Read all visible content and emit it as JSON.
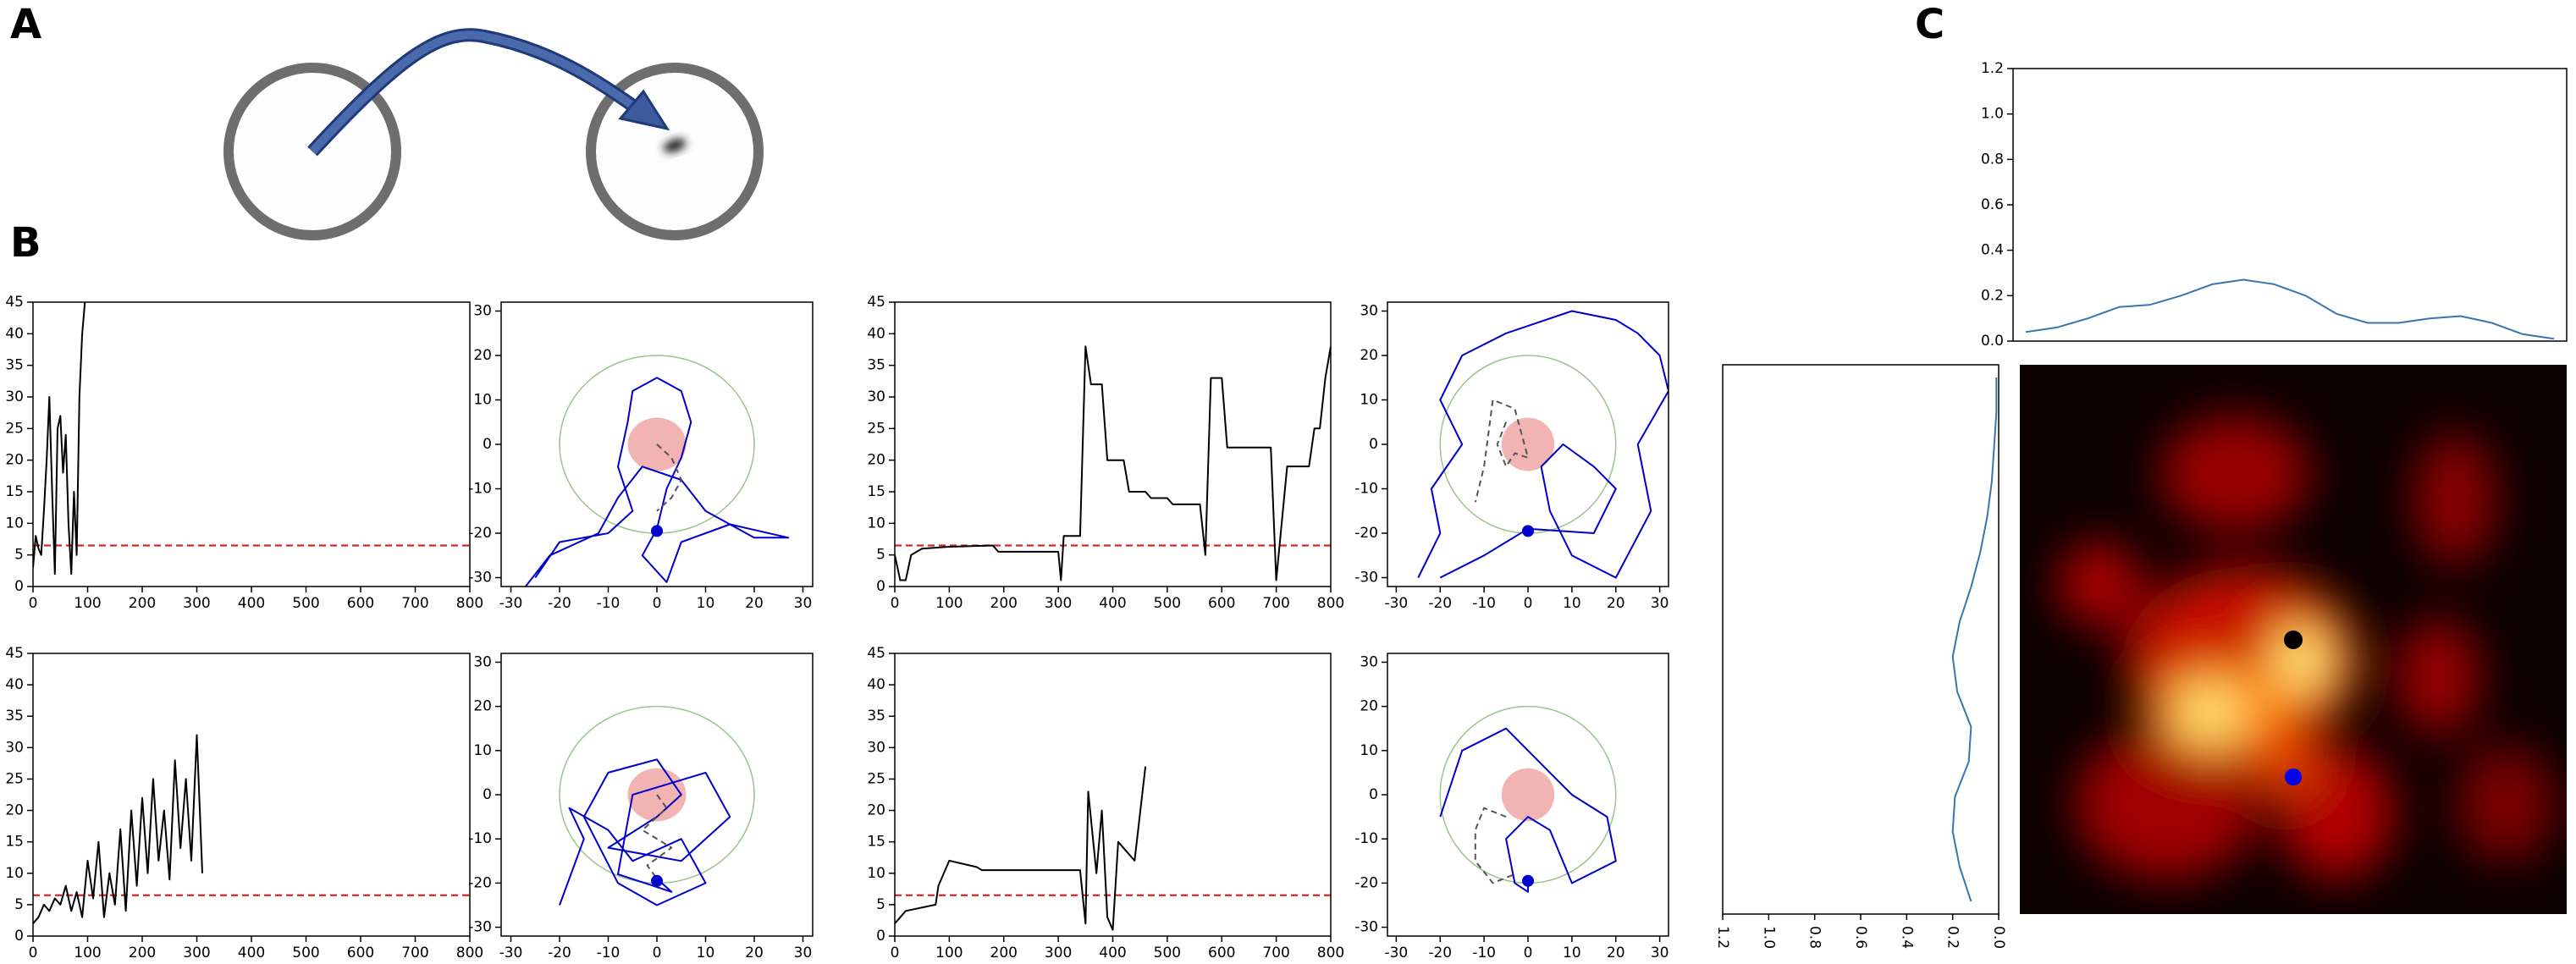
{
  "panel_labels": [
    "A",
    "B",
    "C"
  ],
  "chart_data": [
    {
      "type": "line",
      "xlim": [
        0,
        800
      ],
      "ylim": [
        0,
        45
      ],
      "xticks": [
        0,
        100,
        200,
        300,
        400,
        500,
        600,
        700,
        800
      ],
      "yticks": [
        0,
        5,
        10,
        15,
        20,
        25,
        30,
        35,
        40,
        45
      ],
      "threshold": 6.5,
      "threshold_color": "#d62728",
      "series": [
        {
          "color": "#000000",
          "x": [
            0,
            5,
            10,
            15,
            20,
            25,
            30,
            35,
            40,
            45,
            50,
            55,
            60,
            65,
            70,
            75,
            80,
            85,
            90,
            95
          ],
          "values": [
            3,
            8,
            6,
            5,
            12,
            20,
            30,
            15,
            2,
            25,
            27,
            18,
            24,
            10,
            2,
            15,
            5,
            30,
            40,
            45
          ]
        }
      ]
    },
    {
      "type": "line",
      "xlim": [
        -32,
        32
      ],
      "ylim": [
        -32,
        32
      ],
      "xticks": [
        -30,
        -20,
        -10,
        0,
        10,
        20,
        30
      ],
      "yticks": [
        -30,
        -20,
        -10,
        0,
        10,
        20,
        30
      ],
      "circles": [
        {
          "x": 0,
          "y": 0,
          "r": 20,
          "color": "#9bc48f",
          "filled": false
        },
        {
          "x": 0,
          "y": 0,
          "r": 6,
          "color": "#ee9a9a",
          "filled": true
        }
      ],
      "start": {
        "x": 0,
        "y": -19.5,
        "color": "#0000cc"
      },
      "series": [
        {
          "color": "#0000cc",
          "x": [
            -25,
            -20,
            -10,
            -5,
            -8,
            -6,
            -5,
            0,
            5,
            7,
            5,
            2,
            0,
            -3,
            2,
            5,
            10,
            15,
            27,
            20,
            10,
            5,
            -3,
            -8,
            -12,
            -22,
            -27
          ],
          "values": [
            -30,
            -22,
            -20,
            -15,
            -5,
            5,
            12,
            15,
            12,
            5,
            -3,
            -10,
            -19,
            -25,
            -31,
            -22,
            -20,
            -18,
            -21,
            -21,
            -15,
            -8,
            -5,
            -12,
            -20,
            -25,
            -32
          ]
        },
        {
          "color": "#555555",
          "dashed": true,
          "x": [
            0,
            3,
            5,
            3,
            0
          ],
          "values": [
            0,
            -3,
            -8,
            -12,
            -15
          ]
        }
      ]
    },
    {
      "type": "line",
      "xlim": [
        0,
        800
      ],
      "ylim": [
        0,
        45
      ],
      "xticks": [
        0,
        100,
        200,
        300,
        400,
        500,
        600,
        700,
        800
      ],
      "yticks": [
        0,
        5,
        10,
        15,
        20,
        25,
        30,
        35,
        40,
        45
      ],
      "threshold": 6.5,
      "threshold_color": "#d62728",
      "series": [
        {
          "color": "#000000",
          "x": [
            0,
            10,
            20,
            30,
            50,
            100,
            180,
            190,
            300,
            305,
            310,
            340,
            350,
            360,
            380,
            390,
            420,
            430,
            460,
            470,
            500,
            510,
            560,
            570,
            580,
            600,
            610,
            690,
            700,
            720,
            760,
            770,
            780,
            790,
            800
          ],
          "values": [
            5,
            1,
            1,
            5,
            6,
            6.3,
            6.5,
            5.5,
            5.5,
            1,
            8,
            8,
            38,
            32,
            32,
            20,
            20,
            15,
            15,
            14,
            14,
            13,
            13,
            5,
            33,
            33,
            22,
            22,
            1,
            19,
            19,
            25,
            25,
            33,
            38
          ]
        }
      ]
    },
    {
      "type": "line",
      "xlim": [
        -32,
        32
      ],
      "ylim": [
        -32,
        32
      ],
      "xticks": [
        -30,
        -20,
        -10,
        0,
        10,
        20,
        30
      ],
      "yticks": [
        -30,
        -20,
        -10,
        0,
        10,
        20,
        30
      ],
      "circles": [
        {
          "x": 0,
          "y": 0,
          "r": 20,
          "color": "#9bc48f",
          "filled": false
        },
        {
          "x": 0,
          "y": 0,
          "r": 6,
          "color": "#ee9a9a",
          "filled": true
        }
      ],
      "start": {
        "x": 0,
        "y": -19.5,
        "color": "#0000cc"
      },
      "series": [
        {
          "color": "#0000cc",
          "x": [
            -25,
            -20,
            -22,
            -15,
            -20,
            -15,
            -5,
            10,
            20,
            25,
            30,
            32,
            25,
            28,
            20,
            10,
            5,
            3,
            8,
            15,
            20,
            15,
            0,
            -10,
            -20
          ],
          "values": [
            -30,
            -20,
            -10,
            0,
            10,
            20,
            25,
            30,
            28,
            25,
            20,
            12,
            0,
            -15,
            -30,
            -25,
            -15,
            -5,
            0,
            -5,
            -10,
            -20,
            -19,
            -25,
            -30
          ]
        },
        {
          "color": "#555555",
          "dashed": true,
          "x": [
            -5,
            -7,
            -5,
            -3,
            0,
            -3,
            -8,
            -10,
            -12
          ],
          "values": [
            5,
            0,
            -5,
            -2,
            -3,
            8,
            10,
            -5,
            -13
          ]
        }
      ]
    },
    {
      "type": "line",
      "xlim": [
        0,
        800
      ],
      "ylim": [
        0,
        45
      ],
      "xticks": [
        0,
        100,
        200,
        300,
        400,
        500,
        600,
        700,
        800
      ],
      "yticks": [
        0,
        5,
        10,
        15,
        20,
        25,
        30,
        35,
        40,
        45
      ],
      "threshold": 6.5,
      "threshold_color": "#d62728",
      "series": [
        {
          "color": "#000000",
          "x": [
            0,
            10,
            20,
            30,
            40,
            50,
            60,
            70,
            80,
            90,
            100,
            110,
            120,
            130,
            140,
            150,
            160,
            170,
            180,
            190,
            200,
            210,
            220,
            230,
            240,
            250,
            260,
            270,
            280,
            290,
            300,
            310
          ],
          "values": [
            2,
            3,
            5,
            4,
            6,
            5,
            8,
            4,
            7,
            3,
            12,
            6,
            15,
            3,
            10,
            5,
            17,
            4,
            20,
            8,
            22,
            10,
            25,
            12,
            20,
            9,
            28,
            14,
            25,
            12,
            32,
            10
          ]
        }
      ]
    },
    {
      "type": "line",
      "xlim": [
        -32,
        32
      ],
      "ylim": [
        -32,
        32
      ],
      "xticks": [
        -30,
        -20,
        -10,
        0,
        10,
        20,
        30
      ],
      "yticks": [
        -30,
        -20,
        -10,
        0,
        10,
        20,
        30
      ],
      "circles": [
        {
          "x": 0,
          "y": 0,
          "r": 20,
          "color": "#9bc48f",
          "filled": false
        },
        {
          "x": 0,
          "y": 0,
          "r": 6,
          "color": "#ee9a9a",
          "filled": true
        }
      ],
      "start": {
        "x": 0,
        "y": -19.5,
        "color": "#0000cc"
      },
      "series": [
        {
          "color": "#0000cc",
          "x": [
            -20,
            -15,
            -18,
            -10,
            -5,
            5,
            10,
            0,
            -8,
            -15,
            -10,
            0,
            5,
            0,
            -10,
            5,
            15,
            10,
            -5,
            -8,
            3,
            0
          ],
          "values": [
            -25,
            -10,
            -3,
            -8,
            -15,
            -10,
            -20,
            -25,
            -20,
            -5,
            5,
            8,
            0,
            -5,
            -12,
            -15,
            -5,
            5,
            0,
            -18,
            -22,
            -19
          ]
        },
        {
          "color": "#555555",
          "dashed": true,
          "x": [
            0,
            2,
            -3,
            3,
            -2,
            0
          ],
          "values": [
            0,
            -3,
            -8,
            -12,
            -16,
            -19
          ]
        }
      ]
    },
    {
      "type": "line",
      "xlim": [
        0,
        800
      ],
      "ylim": [
        0,
        45
      ],
      "xticks": [
        0,
        100,
        200,
        300,
        400,
        500,
        600,
        700,
        800
      ],
      "yticks": [
        0,
        5,
        10,
        15,
        20,
        25,
        30,
        35,
        40,
        45
      ],
      "threshold": 6.5,
      "threshold_color": "#d62728",
      "series": [
        {
          "color": "#000000",
          "x": [
            0,
            20,
            75,
            80,
            100,
            150,
            160,
            340,
            350,
            355,
            370,
            380,
            390,
            400,
            410,
            440,
            460
          ],
          "values": [
            2,
            4,
            5,
            8,
            12,
            11,
            10.5,
            10.5,
            2,
            23,
            10,
            20,
            3,
            1,
            15,
            12,
            27
          ]
        }
      ]
    },
    {
      "type": "line",
      "xlim": [
        -32,
        32
      ],
      "ylim": [
        -32,
        32
      ],
      "xticks": [
        -30,
        -20,
        -10,
        0,
        10,
        20,
        30
      ],
      "yticks": [
        -30,
        -20,
        -10,
        0,
        10,
        20,
        30
      ],
      "circles": [
        {
          "x": 0,
          "y": 0,
          "r": 20,
          "color": "#9bc48f",
          "filled": false
        },
        {
          "x": 0,
          "y": 0,
          "r": 6,
          "color": "#ee9a9a",
          "filled": true
        }
      ],
      "start": {
        "x": 0,
        "y": -19.5,
        "color": "#0000cc"
      },
      "series": [
        {
          "color": "#0000cc",
          "x": [
            -20,
            -15,
            -5,
            5,
            10,
            18,
            20,
            10,
            5,
            0,
            -5,
            -3,
            0,
            0
          ],
          "values": [
            -5,
            10,
            15,
            5,
            0,
            -5,
            -15,
            -20,
            -8,
            -5,
            -10,
            -20,
            -22,
            -19
          ]
        },
        {
          "color": "#555555",
          "dashed": true,
          "x": [
            -5,
            -10,
            -12,
            -12,
            -8,
            -3
          ],
          "values": [
            -5,
            -3,
            -8,
            -15,
            -20,
            -18
          ]
        }
      ]
    },
    {
      "type": "line",
      "ylim": [
        0,
        1.2
      ],
      "yticks": [
        {
          "value": 0,
          "label": "0.0"
        },
        {
          "value": 0.2,
          "label": "0.2"
        },
        {
          "value": 0.4,
          "label": "0.4"
        },
        {
          "value": 0.6,
          "label": "0.6"
        },
        {
          "value": 0.8,
          "label": "0.8"
        },
        {
          "value": 1.0,
          "label": "1.0"
        },
        {
          "value": 1.2,
          "label": "1.2"
        }
      ],
      "series": [
        {
          "color": "#3a75b0",
          "values": [
            0.04,
            0.06,
            0.1,
            0.15,
            0.16,
            0.2,
            0.25,
            0.27,
            0.25,
            0.2,
            0.12,
            0.08,
            0.08,
            0.1,
            0.11,
            0.08,
            0.03,
            0.01
          ]
        }
      ]
    },
    {
      "type": "line",
      "orientation": "vertical",
      "xlim": [
        1.2,
        0
      ],
      "xticks": [
        {
          "value": 1.2,
          "label": "1.2"
        },
        {
          "value": 1.0,
          "label": "1.0"
        },
        {
          "value": 0.8,
          "label": "0.8"
        },
        {
          "value": 0.6,
          "label": "0.6"
        },
        {
          "value": 0.4,
          "label": "0.4"
        },
        {
          "value": 0.2,
          "label": "0.2"
        },
        {
          "value": 0,
          "label": "0.0"
        }
      ],
      "series": [
        {
          "color": "#3a75b0",
          "values": [
            0.01,
            0.01,
            0.02,
            0.03,
            0.05,
            0.08,
            0.12,
            0.17,
            0.2,
            0.18,
            0.12,
            0.13,
            0.19,
            0.2,
            0.17,
            0.12
          ]
        }
      ]
    }
  ]
}
